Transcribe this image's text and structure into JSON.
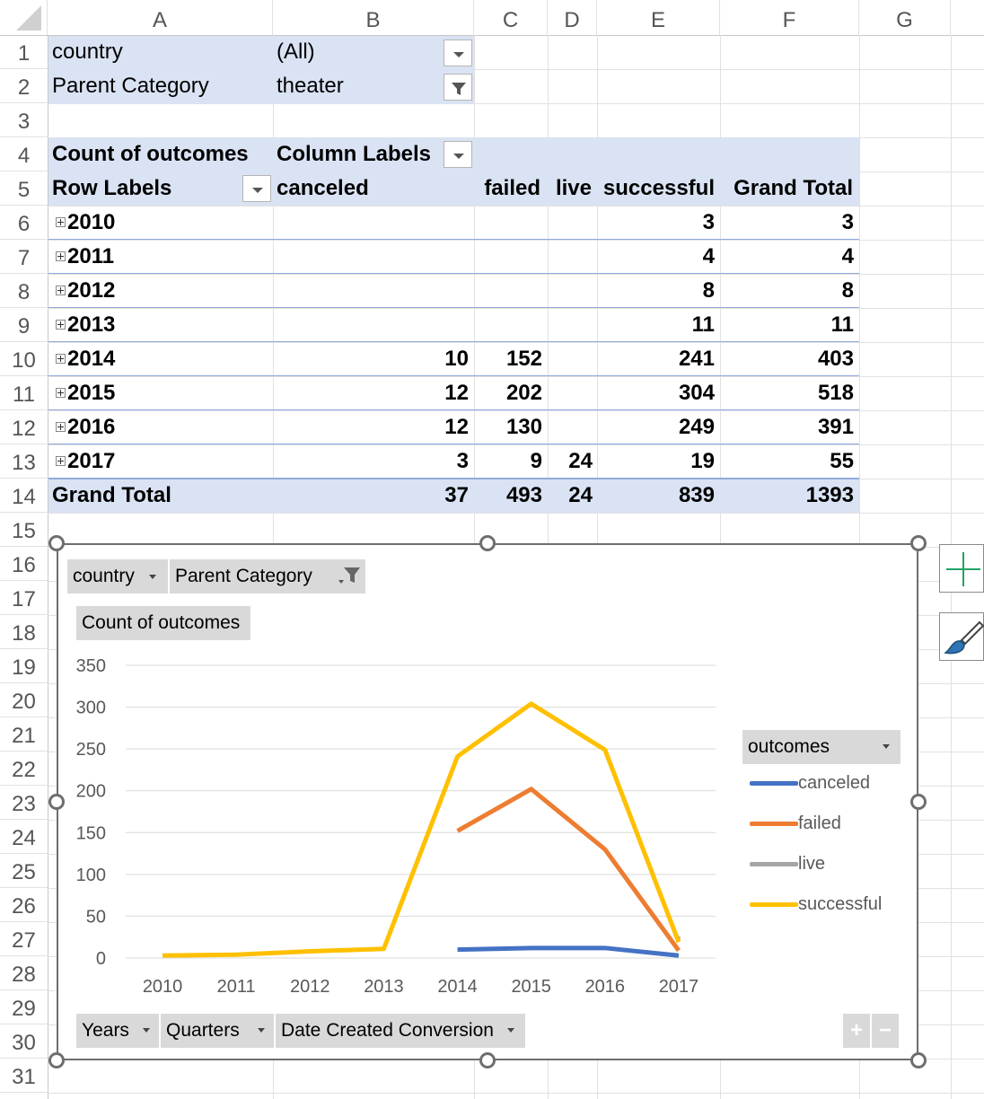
{
  "columns": [
    "A",
    "B",
    "C",
    "D",
    "E",
    "F",
    "G"
  ],
  "rows": [
    "1",
    "2",
    "3",
    "4",
    "5",
    "6",
    "7",
    "8",
    "9",
    "10",
    "11",
    "12",
    "13",
    "14",
    "15",
    "16",
    "17",
    "18",
    "19",
    "20",
    "21",
    "22",
    "23",
    "24",
    "25",
    "26",
    "27",
    "28",
    "29",
    "30",
    "31"
  ],
  "filters": [
    {
      "label": "country",
      "value": "(All)"
    },
    {
      "label": "Parent Category",
      "value": "theater"
    }
  ],
  "pivot": {
    "corner": "Count of outcomes",
    "column_labels": "Column Labels",
    "row_labels": "Row Labels",
    "headers": [
      "canceled",
      "failed",
      "live",
      "successful",
      "Grand Total"
    ],
    "rows": [
      {
        "year": "2010",
        "canceled": "",
        "failed": "",
        "live": "",
        "successful": "3",
        "total": "3"
      },
      {
        "year": "2011",
        "canceled": "",
        "failed": "",
        "live": "",
        "successful": "4",
        "total": "4"
      },
      {
        "year": "2012",
        "canceled": "",
        "failed": "",
        "live": "",
        "successful": "8",
        "total": "8"
      },
      {
        "year": "2013",
        "canceled": "",
        "failed": "",
        "live": "",
        "successful": "11",
        "total": "11"
      },
      {
        "year": "2014",
        "canceled": "10",
        "failed": "152",
        "live": "",
        "successful": "241",
        "total": "403"
      },
      {
        "year": "2015",
        "canceled": "12",
        "failed": "202",
        "live": "",
        "successful": "304",
        "total": "518"
      },
      {
        "year": "2016",
        "canceled": "12",
        "failed": "130",
        "live": "",
        "successful": "249",
        "total": "391"
      },
      {
        "year": "2017",
        "canceled": "3",
        "failed": "9",
        "live": "24",
        "successful": "19",
        "total": "55"
      }
    ],
    "grand_total": {
      "label": "Grand Total",
      "canceled": "37",
      "failed": "493",
      "live": "24",
      "successful": "839",
      "total": "1393"
    }
  },
  "chart_buttons": {
    "country": "country",
    "parent_category": "Parent Category",
    "value_field": "Count of outcomes",
    "legend_field": "outcomes",
    "axis_fields": [
      "Years",
      "Quarters",
      "Date Created Conversion"
    ],
    "zoom_in": "+",
    "zoom_out": "−"
  },
  "chart_data": {
    "type": "line",
    "categories": [
      "2010",
      "2011",
      "2012",
      "2013",
      "2014",
      "2015",
      "2016",
      "2017"
    ],
    "ylim": [
      0,
      350
    ],
    "yticks": [
      0,
      50,
      100,
      150,
      200,
      250,
      300,
      350
    ],
    "grid": true,
    "legend": "right",
    "series": [
      {
        "name": "canceled",
        "color": "#4472c4",
        "values": [
          null,
          null,
          null,
          null,
          10,
          12,
          12,
          3
        ]
      },
      {
        "name": "failed",
        "color": "#ed7d31",
        "values": [
          null,
          null,
          null,
          null,
          152,
          202,
          130,
          9
        ]
      },
      {
        "name": "live",
        "color": "#a5a5a5",
        "values": [
          null,
          null,
          null,
          null,
          null,
          null,
          null,
          24
        ]
      },
      {
        "name": "successful",
        "color": "#ffc000",
        "values": [
          3,
          4,
          8,
          11,
          241,
          304,
          249,
          19
        ]
      }
    ]
  }
}
